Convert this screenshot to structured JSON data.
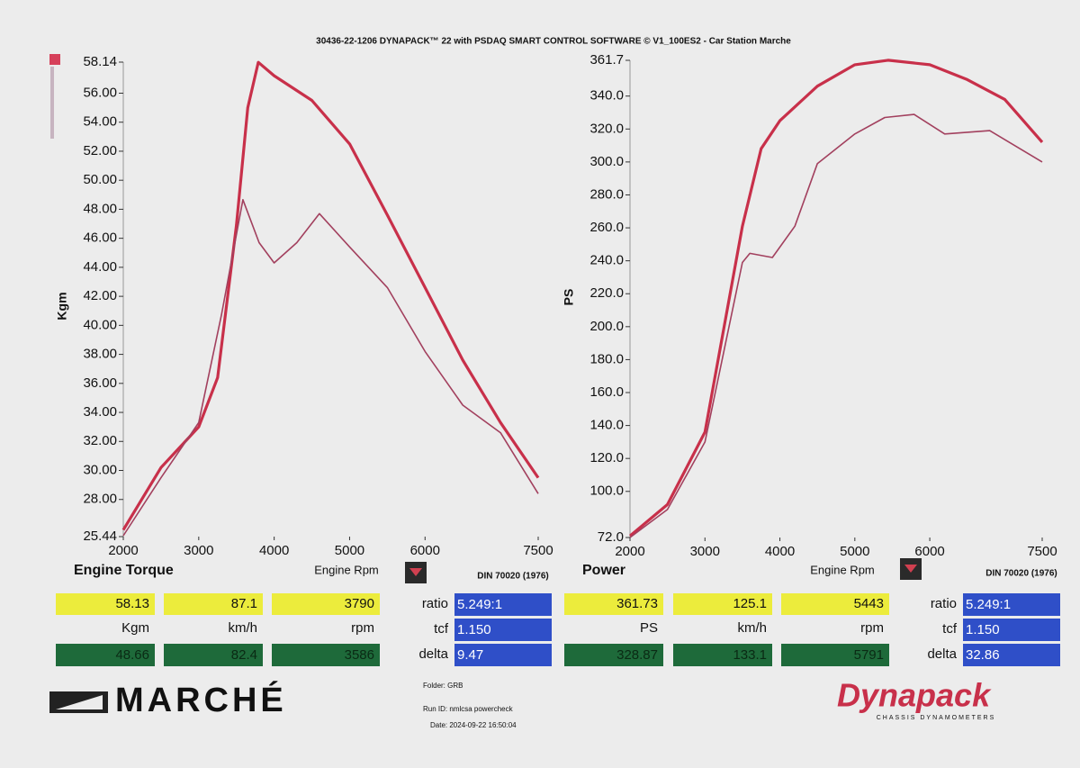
{
  "header": {
    "title": "30436-22-1206 DYNAPACK™ 22 with PSDAQ SMART CONTROL SOFTWARE © V1_100ES2 - Car Station Marche"
  },
  "chart_data": [
    {
      "type": "line",
      "title": "Engine Torque",
      "x_label": "Engine Rpm",
      "y_label": "Kgm",
      "note": "DIN 70020 (1976)",
      "xlim": [
        2000,
        7500
      ],
      "xticks": [
        2000,
        3000,
        4000,
        5000,
        6000,
        7500
      ],
      "ylim": [
        25.44,
        58.14
      ],
      "yticks": [
        25.44,
        {
          "value": 28,
          "label": "28.00"
        },
        {
          "value": 30,
          "label": "30.00"
        },
        {
          "value": 32,
          "label": "32.00"
        },
        {
          "value": 34,
          "label": "34.00"
        },
        {
          "value": 36,
          "label": "36.00"
        },
        {
          "value": 38,
          "label": "38.00"
        },
        {
          "value": 40,
          "label": "40.00"
        },
        {
          "value": 42,
          "label": "42.00"
        },
        {
          "value": 44,
          "label": "44.00"
        },
        {
          "value": 46,
          "label": "46.00"
        },
        {
          "value": 48,
          "label": "48.00"
        },
        {
          "value": 50,
          "label": "50.00"
        },
        {
          "value": 52,
          "label": "52.00"
        },
        {
          "value": 54,
          "label": "54.00"
        },
        {
          "value": 56,
          "label": "56.00"
        },
        58.14
      ],
      "series": [
        {
          "color": "#c8304a",
          "width": 3.2,
          "x": [
            2000,
            2500,
            3000,
            3250,
            3500,
            3650,
            3790,
            4000,
            4500,
            5000,
            5500,
            6000,
            6500,
            7000,
            7500
          ],
          "values": [
            25.9,
            30.2,
            33.0,
            36.4,
            46.9,
            55.0,
            58.13,
            57.2,
            55.5,
            52.5,
            47.6,
            42.6,
            37.6,
            33.3,
            29.5
          ]
        },
        {
          "color": "#a2405e",
          "width": 1.6,
          "x": [
            2000,
            2500,
            3000,
            3300,
            3586,
            3800,
            4000,
            4300,
            4600,
            5000,
            5500,
            6000,
            6500,
            7000,
            7500
          ],
          "values": [
            25.5,
            29.5,
            33.3,
            40.7,
            48.66,
            45.7,
            44.3,
            45.7,
            47.7,
            45.4,
            42.6,
            38.2,
            34.5,
            32.6,
            28.4
          ]
        }
      ]
    },
    {
      "type": "line",
      "title": "Power",
      "x_label": "Engine Rpm",
      "y_label": "PS",
      "note": "DIN 70020 (1976)",
      "xlim": [
        2000,
        7500
      ],
      "xticks": [
        2000,
        3000,
        4000,
        5000,
        6000,
        7500
      ],
      "ylim": [
        72,
        361.7
      ],
      "yticks": [
        {
          "value": 72,
          "label": "72.0"
        },
        {
          "value": 100,
          "label": "100.0"
        },
        {
          "value": 120,
          "label": "120.0"
        },
        {
          "value": 140,
          "label": "140.0"
        },
        {
          "value": 160,
          "label": "160.0"
        },
        {
          "value": 180,
          "label": "180.0"
        },
        {
          "value": 200,
          "label": "200.0"
        },
        {
          "value": 220,
          "label": "220.0"
        },
        {
          "value": 240,
          "label": "240.0"
        },
        {
          "value": 260,
          "label": "260.0"
        },
        {
          "value": 280,
          "label": "280.0"
        },
        {
          "value": 300,
          "label": "300.0"
        },
        {
          "value": 320,
          "label": "320.0"
        },
        {
          "value": 340,
          "label": "340.0"
        },
        361.7
      ],
      "series": [
        {
          "color": "#c8304a",
          "width": 3.2,
          "x": [
            2000,
            2500,
            3000,
            3500,
            3750,
            4000,
            4500,
            5000,
            5443,
            6000,
            6500,
            7000,
            7500
          ],
          "values": [
            73,
            92,
            136,
            261,
            308,
            325,
            346,
            359,
            361.73,
            359,
            350,
            338,
            312
          ]
        },
        {
          "color": "#a2405e",
          "width": 1.6,
          "x": [
            2000,
            2500,
            3000,
            3500,
            3600,
            3900,
            4200,
            4500,
            5000,
            5400,
            5791,
            6200,
            6800,
            7500
          ],
          "values": [
            72,
            89,
            130,
            239,
            244.5,
            242,
            261,
            299,
            317,
            327,
            328.87,
            317,
            319,
            300
          ]
        }
      ]
    }
  ],
  "readouts": [
    {
      "top": [
        "58.13",
        "87.1",
        "3790"
      ],
      "units": [
        "Kgm",
        "km/h",
        "rpm"
      ],
      "bottom": [
        "48.66",
        "82.4",
        "3586"
      ],
      "params": [
        {
          "label": "ratio",
          "value": "5.249:1"
        },
        {
          "label": "tcf",
          "value": "1.150"
        },
        {
          "label": "delta",
          "value": "9.47"
        }
      ]
    },
    {
      "top": [
        "361.73",
        "125.1",
        "5443"
      ],
      "units": [
        "PS",
        "km/h",
        "rpm"
      ],
      "bottom": [
        "328.87",
        "133.1",
        "5791"
      ],
      "params": [
        {
          "label": "ratio",
          "value": "5.249:1"
        },
        {
          "label": "tcf",
          "value": "1.150"
        },
        {
          "label": "delta",
          "value": "32.86"
        }
      ]
    }
  ],
  "footer": {
    "logo_left": "MARCHÉ",
    "folder": "Folder: GRB",
    "run_id": "Run ID: nmlcsa powercheck",
    "date": "Date: 2024-09-22 16:50:04",
    "logo_right": "Dynapack",
    "logo_right_sub": "CHASSIS DYNAMOMETERS"
  }
}
